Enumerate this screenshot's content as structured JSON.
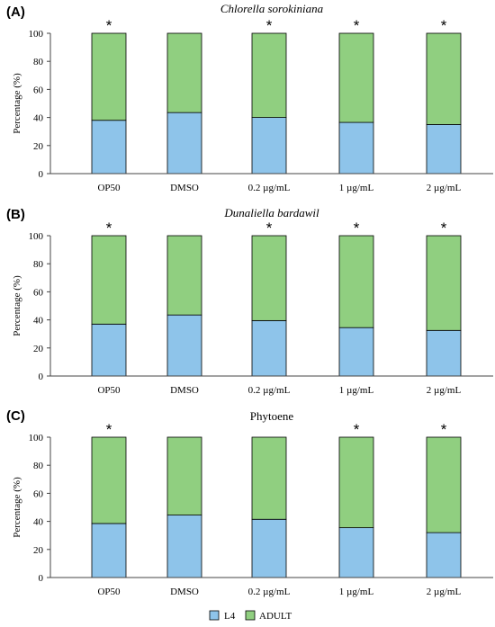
{
  "legend": [
    {
      "name": "L4",
      "color": "#8ec4ea"
    },
    {
      "name": "ADULT",
      "color": "#90cf80"
    }
  ],
  "chart_data": [
    {
      "type": "bar",
      "stacked": true,
      "panel_label": "(A)",
      "title": "Chlorella sorokiniana",
      "title_italic": true,
      "ylabel": "Percentage (%)",
      "ylim": [
        0,
        100
      ],
      "yticks": [
        "0",
        "20",
        "40",
        "60",
        "80",
        "100"
      ],
      "categories": [
        "OP50",
        "DMSO",
        "0.2 µg/mL",
        "1 µg/mL",
        "2 µg/mL"
      ],
      "series": [
        {
          "name": "L4",
          "values": [
            38,
            43.5,
            40,
            36.5,
            35
          ]
        },
        {
          "name": "ADULT",
          "values": [
            62,
            56.5,
            60,
            63.5,
            65
          ]
        }
      ],
      "significance": [
        "*",
        "",
        "*",
        "*",
        "*"
      ]
    },
    {
      "type": "bar",
      "stacked": true,
      "panel_label": "(B)",
      "title": "Dunaliella bardawil",
      "title_italic": true,
      "ylabel": "Percentage (%)",
      "ylim": [
        0,
        100
      ],
      "yticks": [
        "0",
        "20",
        "40",
        "60",
        "80",
        "100"
      ],
      "categories": [
        "OP50",
        "DMSO",
        "0.2 µg/mL",
        "1 µg/mL",
        "2 µg/mL"
      ],
      "series": [
        {
          "name": "L4",
          "values": [
            37,
            43.5,
            39.5,
            34.5,
            32.5
          ]
        },
        {
          "name": "ADULT",
          "values": [
            63,
            56.5,
            60.5,
            65.5,
            67.5
          ]
        }
      ],
      "significance": [
        "*",
        "",
        "*",
        "*",
        "*"
      ]
    },
    {
      "type": "bar",
      "stacked": true,
      "panel_label": "(C)",
      "title": "Phytoene",
      "title_italic": false,
      "ylabel": "Percentage (%)",
      "ylim": [
        0,
        100
      ],
      "yticks": [
        "0",
        "20",
        "40",
        "60",
        "80",
        "100"
      ],
      "categories": [
        "OP50",
        "DMSO",
        "0.2 µg/mL",
        "1 µg/mL",
        "2 µg/mL"
      ],
      "series": [
        {
          "name": "L4",
          "values": [
            38.5,
            44.5,
            41.5,
            35.5,
            32
          ]
        },
        {
          "name": "ADULT",
          "values": [
            61.5,
            55.5,
            58.5,
            64.5,
            68
          ]
        }
      ],
      "significance": [
        "*",
        "",
        "",
        "*",
        "*"
      ]
    }
  ]
}
